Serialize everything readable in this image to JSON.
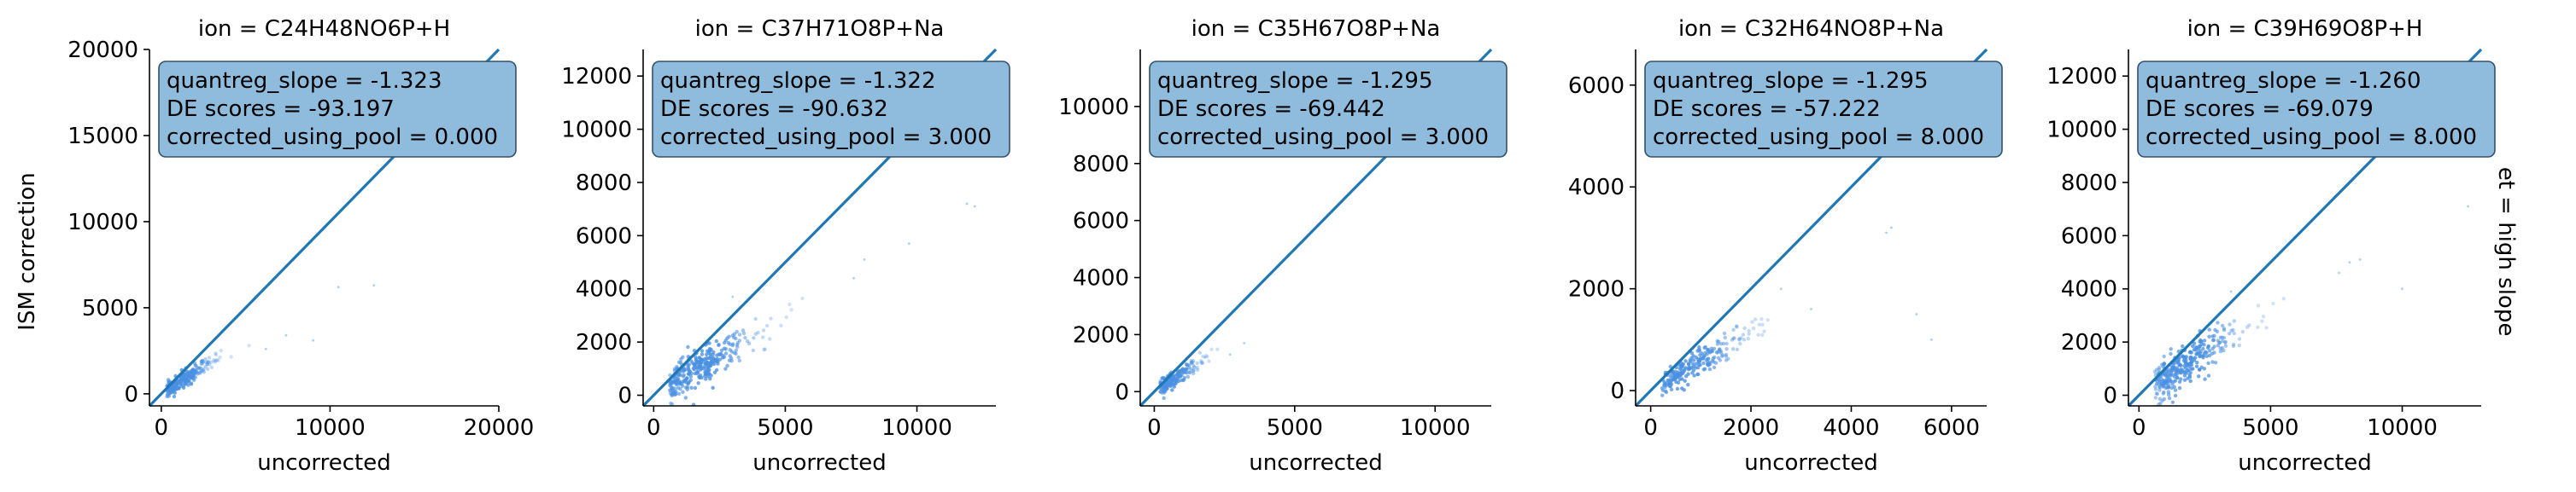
{
  "figure": {
    "ylabel": "ISM correction",
    "row_label": "et = high slope",
    "identity_line_color": "#1f77b4",
    "scatter_color": "#4a90e2",
    "box_fill": "#8fbcdd",
    "box_edge": "#35506b"
  },
  "chart_data": [
    {
      "type": "scatter",
      "title": "ion = C24H48NO6P+H",
      "xlabel": "uncorrected",
      "ylabel": "ISM correction",
      "xlim": [
        -700,
        20000
      ],
      "ylim": [
        -700,
        20000
      ],
      "xticks": [
        0,
        10000,
        20000
      ],
      "yticks": [
        0,
        5000,
        10000,
        15000,
        20000
      ],
      "annotation": [
        "quantreg_slope = -1.323",
        "DE scores = -93.197",
        "corrected_using_pool = 0.000"
      ],
      "cloud": {
        "x_center": 1100,
        "y_center": 700,
        "x_spread": 1400,
        "y_spread": 700,
        "n": 220,
        "x_max": 6500,
        "y_max": 2800
      },
      "outliers": [
        [
          9000,
          3100
        ],
        [
          10500,
          6200
        ],
        [
          6200,
          2600
        ],
        [
          12600,
          6300
        ],
        [
          7400,
          3400
        ]
      ]
    },
    {
      "type": "scatter",
      "title": "ion = C37H71O8P+Na",
      "xlabel": "uncorrected",
      "ylabel": "",
      "xlim": [
        -400,
        13000
      ],
      "ylim": [
        -400,
        13000
      ],
      "xticks": [
        0,
        5000,
        10000
      ],
      "yticks": [
        0,
        2000,
        4000,
        6000,
        8000,
        10000,
        12000
      ],
      "annotation": [
        "quantreg_slope = -1.322",
        "DE scores = -90.632",
        "corrected_using_pool = 3.000"
      ],
      "cloud": {
        "x_center": 2000,
        "y_center": 1200,
        "x_spread": 1600,
        "y_spread": 900,
        "n": 320,
        "x_max": 6000,
        "y_max": 4300
      },
      "outliers": [
        [
          8000,
          5100
        ],
        [
          9700,
          5700
        ],
        [
          11900,
          7200
        ],
        [
          12200,
          7100
        ],
        [
          3000,
          3700
        ],
        [
          7600,
          4400
        ]
      ]
    },
    {
      "type": "scatter",
      "title": "ion = C35H67O8P+Na",
      "xlabel": "uncorrected",
      "ylabel": "",
      "xlim": [
        -500,
        12000
      ],
      "ylim": [
        -500,
        12000
      ],
      "xticks": [
        0,
        5000,
        10000
      ],
      "yticks": [
        0,
        2000,
        4000,
        6000,
        8000,
        10000
      ],
      "annotation": [
        "quantreg_slope = -1.295",
        "DE scores = -69.442",
        "corrected_using_pool = 3.000"
      ],
      "cloud": {
        "x_center": 700,
        "y_center": 450,
        "x_spread": 700,
        "y_spread": 450,
        "n": 180,
        "x_max": 2500,
        "y_max": 1500
      },
      "outliers": [
        [
          2700,
          1300
        ],
        [
          3200,
          1700
        ],
        [
          1800,
          1200
        ]
      ]
    },
    {
      "type": "scatter",
      "title": "ion = C32H64NO8P+Na",
      "xlabel": "uncorrected",
      "ylabel": "",
      "xlim": [
        -300,
        6700
      ],
      "ylim": [
        -300,
        6700
      ],
      "xticks": [
        0,
        2000,
        4000,
        6000
      ],
      "yticks": [
        0,
        2000,
        4000,
        6000
      ],
      "annotation": [
        "quantreg_slope = -1.295",
        "DE scores = -57.222",
        "corrected_using_pool = 8.000"
      ],
      "cloud": {
        "x_center": 700,
        "y_center": 400,
        "x_spread": 900,
        "y_spread": 400,
        "n": 220,
        "x_max": 3000,
        "y_max": 1500
      },
      "outliers": [
        [
          4700,
          3100
        ],
        [
          4800,
          3200
        ],
        [
          5300,
          1500
        ],
        [
          5600,
          1000
        ],
        [
          3200,
          1600
        ],
        [
          2600,
          2000
        ]
      ]
    },
    {
      "type": "scatter",
      "title": "ion = C39H69O8P+H",
      "xlabel": "uncorrected",
      "ylabel": "",
      "xlim": [
        -400,
        13000
      ],
      "ylim": [
        -400,
        13000
      ],
      "xticks": [
        0,
        5000,
        10000
      ],
      "yticks": [
        0,
        2000,
        4000,
        6000,
        8000,
        10000,
        12000
      ],
      "annotation": [
        "quantreg_slope = -1.260",
        "DE scores = -69.079",
        "corrected_using_pool = 8.000"
      ],
      "cloud": {
        "x_center": 2000,
        "y_center": 1300,
        "x_spread": 1500,
        "y_spread": 1000,
        "n": 320,
        "x_max": 5500,
        "y_max": 4500
      },
      "outliers": [
        [
          7600,
          4600
        ],
        [
          8400,
          5100
        ],
        [
          10000,
          4000
        ],
        [
          12500,
          7100
        ],
        [
          3500,
          3900
        ],
        [
          8000,
          5000
        ]
      ]
    }
  ]
}
